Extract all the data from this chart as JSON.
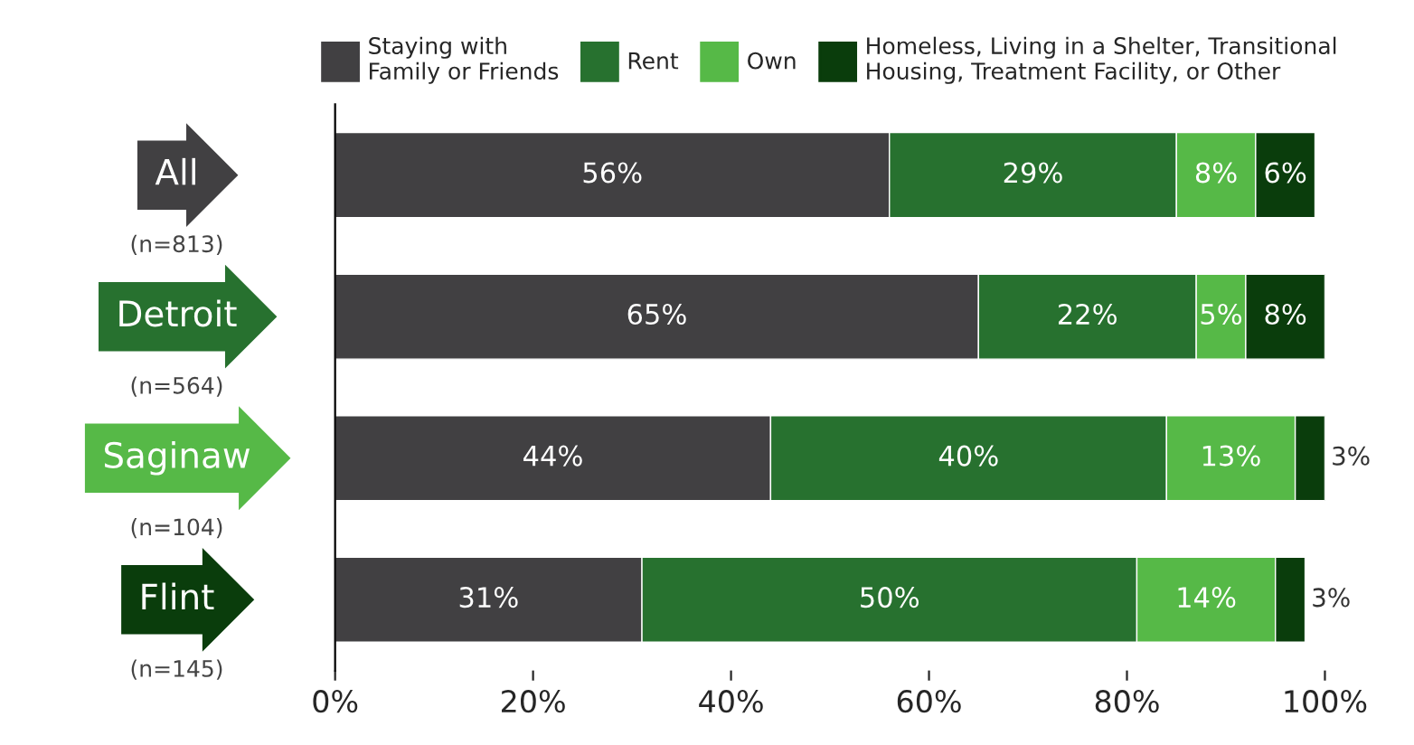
{
  "chart_data": {
    "type": "bar",
    "orientation": "horizontal",
    "stacked": true,
    "categories": [
      "All",
      "Detroit",
      "Saginaw",
      "Flint"
    ],
    "series": [
      {
        "name": "Staying with\nFamily or Friends",
        "color": "#414042",
        "values": [
          56,
          65,
          44,
          31
        ],
        "value_labels": [
          "56%",
          "65%",
          "44%",
          "31%"
        ]
      },
      {
        "name": "Rent",
        "color": "#27712f",
        "values": [
          29,
          22,
          40,
          50
        ],
        "value_labels": [
          "29%",
          "22%",
          "40%",
          "50%"
        ]
      },
      {
        "name": "Own",
        "color": "#56b947",
        "values": [
          8,
          5,
          13,
          14
        ],
        "value_labels": [
          "8%",
          "5%",
          "13%",
          "14%"
        ]
      },
      {
        "name": "Homeless, Living in a Shelter, Transitional\nHousing, Treatment Facility, or Other",
        "color": "#0a3d0c",
        "values": [
          6,
          8,
          3,
          3
        ],
        "value_labels": [
          "6%",
          "8%",
          "3%",
          "3%"
        ]
      }
    ],
    "annotations": [
      "(n=813)",
      "(n=564)",
      "(n=104)",
      "(n=145)"
    ],
    "xlim": [
      0,
      100
    ],
    "xticks": [
      {
        "value": 0,
        "label": "0%"
      },
      {
        "value": 20,
        "label": "20%"
      },
      {
        "value": 40,
        "label": "40%"
      },
      {
        "value": 60,
        "label": "60%"
      },
      {
        "value": 80,
        "label": "80%"
      },
      {
        "value": 100,
        "label": "100%"
      }
    ],
    "legend": "top",
    "grid": false
  }
}
